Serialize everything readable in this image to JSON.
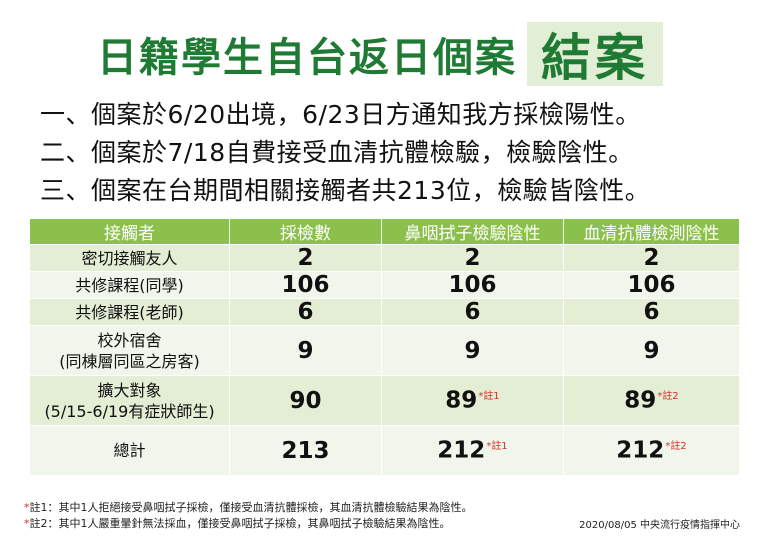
{
  "title": {
    "main": "日籍學生自台返日個案",
    "accent": "結案"
  },
  "points": [
    "一、個案於6/20出境，6/23日方通知我方採檢陽性。",
    "二、個案於7/18自費接受血清抗體檢驗，檢驗陰性。",
    "三、個案在台期間相關接觸者共213位，檢驗皆陰性。"
  ],
  "table": {
    "headers": [
      "接觸者",
      "採檢數",
      "鼻咽拭子檢驗陰性",
      "血清抗體檢測陰性"
    ],
    "rows": [
      {
        "label1": "密切接觸友人",
        "label2": "",
        "sampled": "2",
        "nasal": "2",
        "nasal_note": "",
        "serum": "2",
        "serum_note": ""
      },
      {
        "label1": "共修課程(同學)",
        "label2": "",
        "sampled": "106",
        "nasal": "106",
        "nasal_note": "",
        "serum": "106",
        "serum_note": ""
      },
      {
        "label1": "共修課程(老師)",
        "label2": "",
        "sampled": "6",
        "nasal": "6",
        "nasal_note": "",
        "serum": "6",
        "serum_note": ""
      },
      {
        "label1": "校外宿舍",
        "label2": "(同棟層同區之房客)",
        "sampled": "9",
        "nasal": "9",
        "nasal_note": "",
        "serum": "9",
        "serum_note": ""
      },
      {
        "label1": "擴大對象",
        "label2": "(5/15-6/19有症狀師生)",
        "sampled": "90",
        "nasal": "89",
        "nasal_note": "*註1",
        "serum": "89",
        "serum_note": "*註2"
      },
      {
        "label1": "總計",
        "label2": "",
        "sampled": "213",
        "nasal": "212",
        "nasal_note": "*註1",
        "serum": "212",
        "serum_note": "*註2"
      }
    ]
  },
  "footnotes": [
    {
      "mark": "*",
      "text": "註1：其中1人拒絕接受鼻咽拭子採檢，僅接受血清抗體採檢，其血清抗體檢驗結果為陰性。"
    },
    {
      "mark": "*",
      "text": "註2：其中1人嚴重暈針無法採血，僅接受鼻咽拭子採檢，其鼻咽拭子檢驗結果為陰性。"
    }
  ],
  "date_org": "2020/08/05  中央流行疫情指揮中心",
  "colors": {
    "title_green": "#1f7a34",
    "title_box": "#e2efd6",
    "header_green": "#8cc04d",
    "row_odd": "#e3eed4",
    "row_even": "#f1f6ec",
    "note_red": "#d8302a"
  }
}
